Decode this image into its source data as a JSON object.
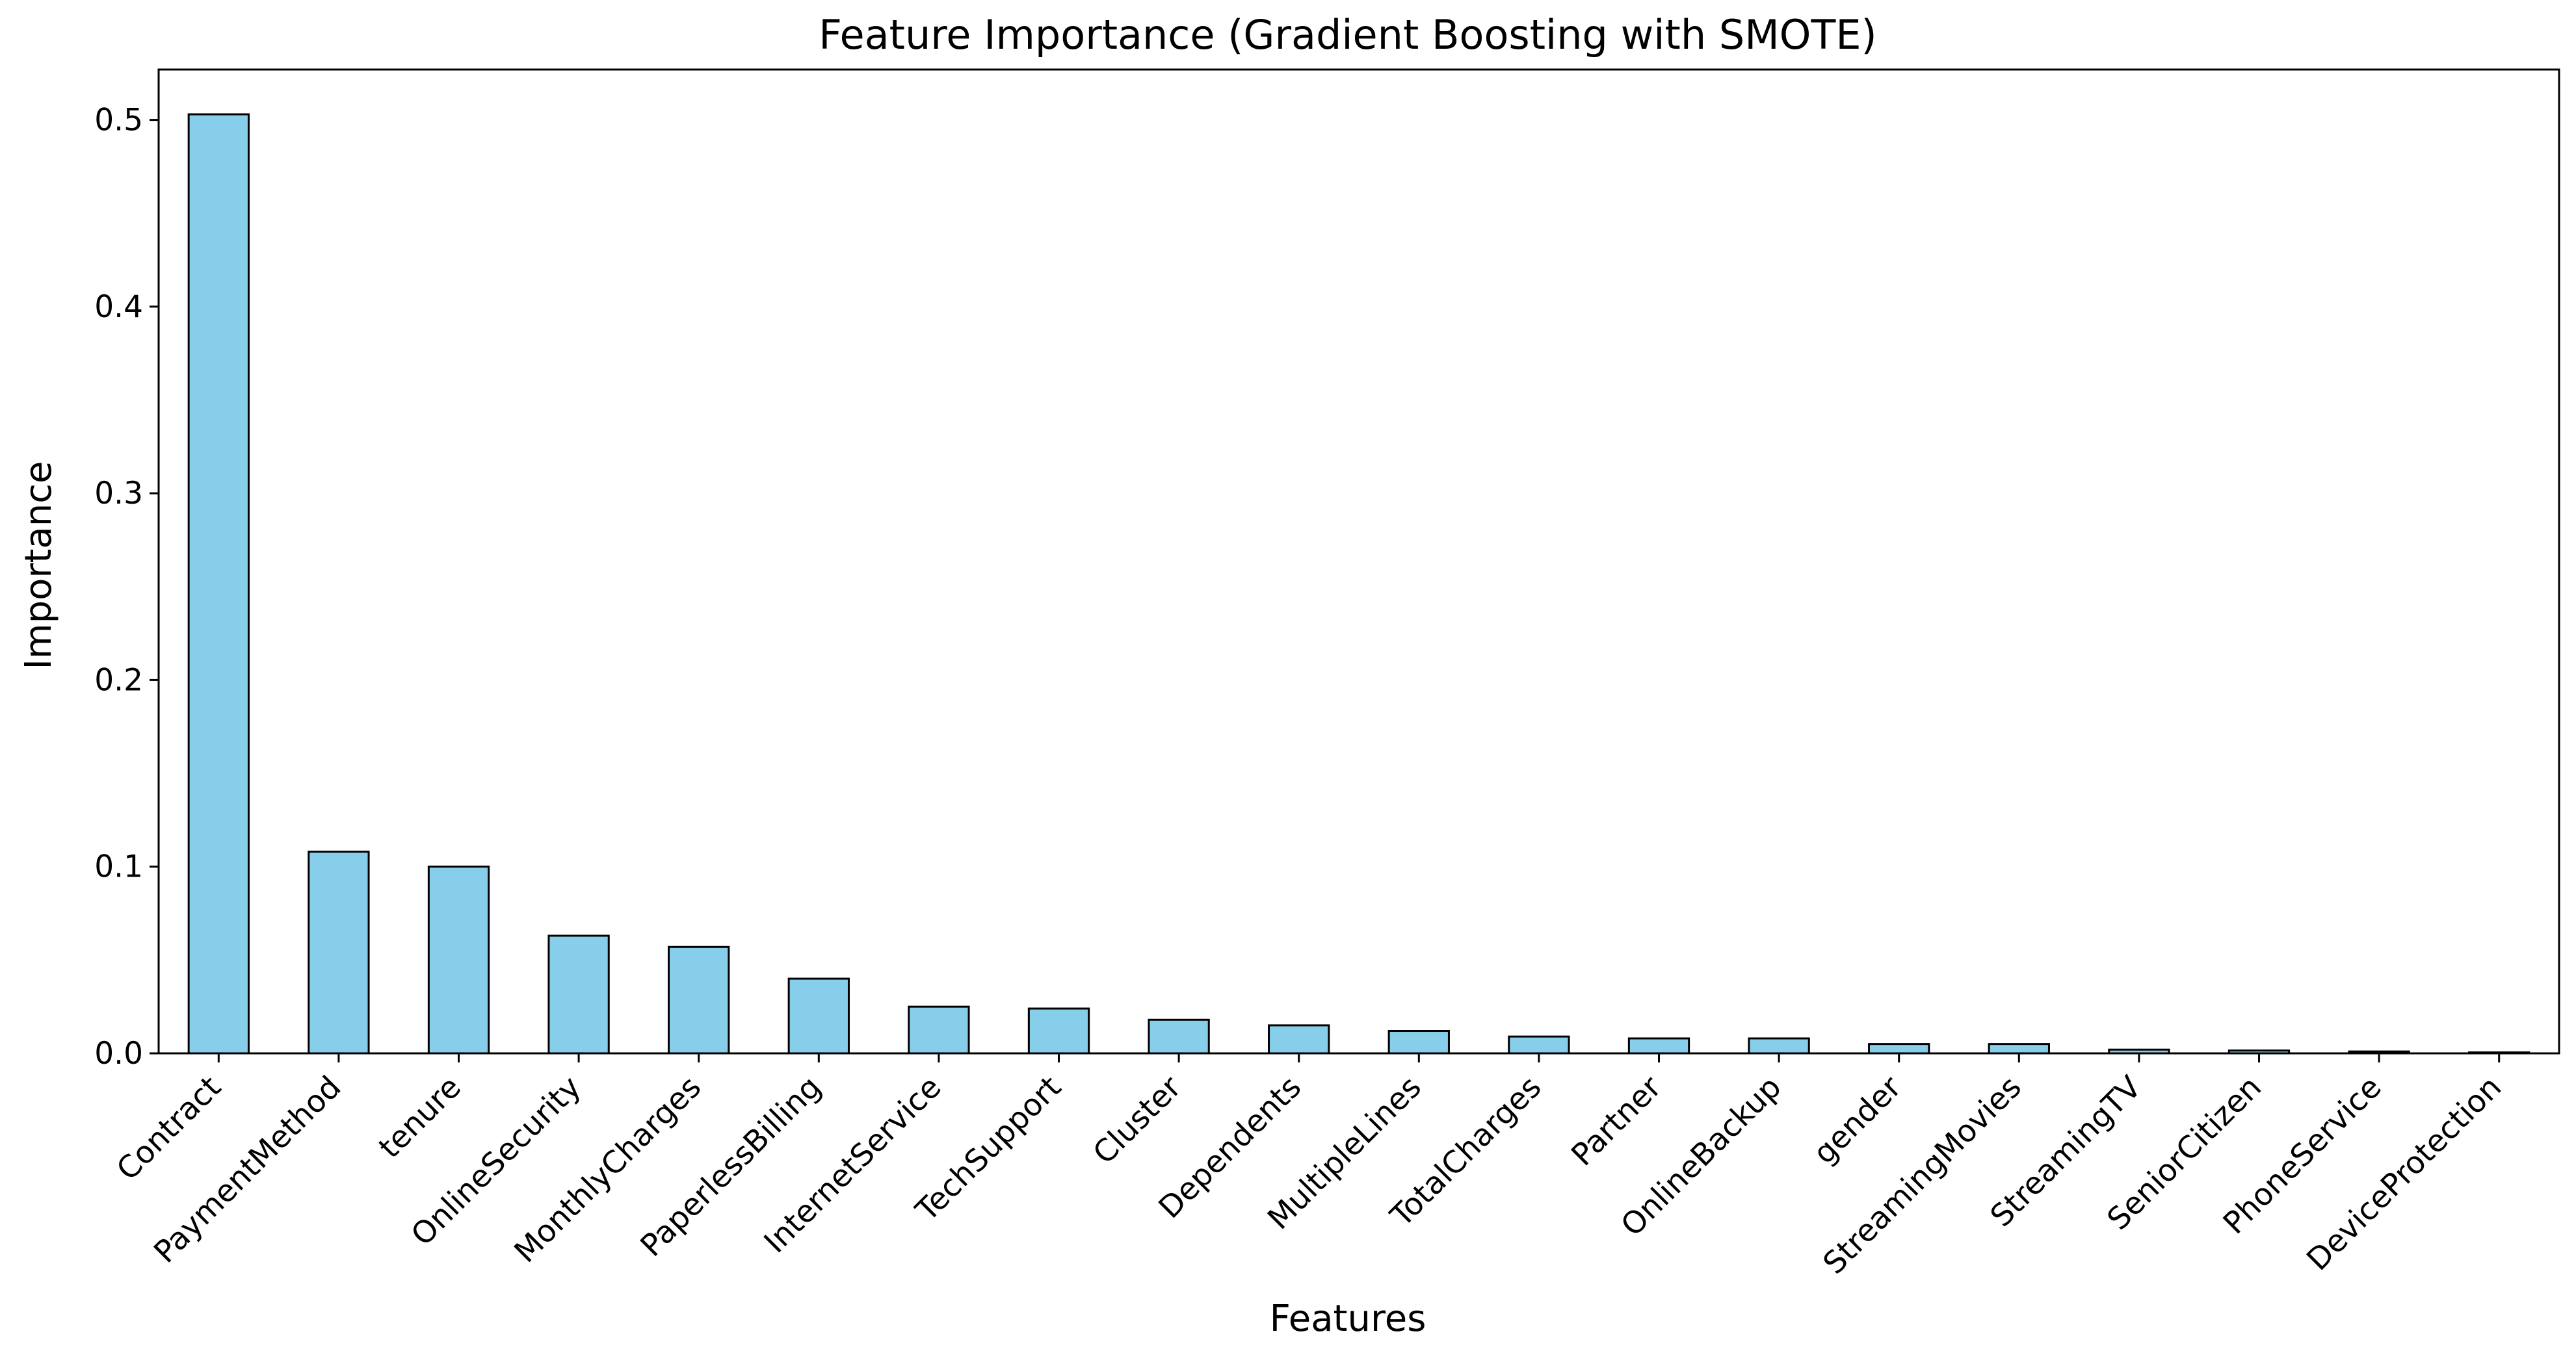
{
  "chart_data": {
    "type": "bar",
    "title": "Feature Importance (Gradient Boosting with SMOTE)",
    "xlabel": "Features",
    "ylabel": "Importance",
    "categories": [
      "Contract",
      "PaymentMethod",
      "tenure",
      "OnlineSecurity",
      "MonthlyCharges",
      "PaperlessBilling",
      "InternetService",
      "TechSupport",
      "Cluster",
      "Dependents",
      "MultipleLines",
      "TotalCharges",
      "Partner",
      "OnlineBackup",
      "gender",
      "StreamingMovies",
      "StreamingTV",
      "SeniorCitizen",
      "PhoneService",
      "DeviceProtection"
    ],
    "values": [
      0.503,
      0.108,
      0.1,
      0.063,
      0.057,
      0.04,
      0.025,
      0.024,
      0.018,
      0.015,
      0.012,
      0.009,
      0.008,
      0.008,
      0.005,
      0.005,
      0.002,
      0.0015,
      0.001,
      0.0005
    ],
    "ylim": [
      0,
      0.527
    ],
    "yticks": [
      "0.0",
      "0.1",
      "0.2",
      "0.3",
      "0.4",
      "0.5"
    ],
    "grid": false,
    "legend": "none",
    "colors": {
      "bar_fill": "#87ceeb",
      "bar_edge": "#000000",
      "axes": "#000000"
    }
  }
}
